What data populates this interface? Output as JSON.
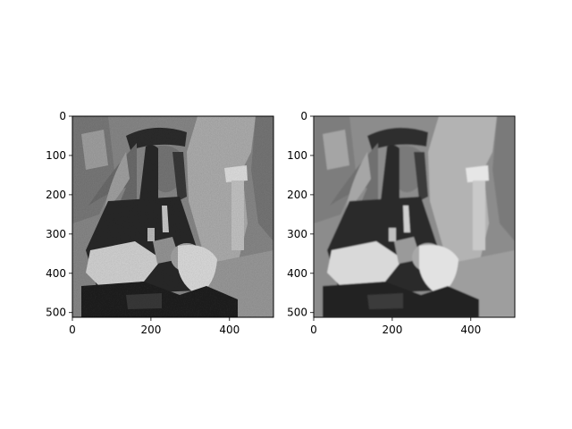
{
  "figure": {
    "background": "#ffffff",
    "axis_color": "#000000"
  },
  "chart_data": [
    {
      "type": "heatmap",
      "title": "",
      "xlabel": "",
      "ylabel": "",
      "colormap": "gray",
      "image_size": [
        512,
        512
      ],
      "xlim": [
        0,
        512
      ],
      "ylim": [
        512,
        0
      ],
      "x_ticks": [
        0,
        200,
        400
      ],
      "y_ticks": [
        0,
        100,
        200,
        300,
        400,
        500
      ],
      "grid": false,
      "content": "grayscale photo: seated person with feather-plumed hat holding a large shell, original"
    },
    {
      "type": "heatmap",
      "title": "",
      "xlabel": "",
      "ylabel": "",
      "colormap": "gray",
      "image_size": [
        512,
        512
      ],
      "xlim": [
        0,
        512
      ],
      "ylim": [
        512,
        0
      ],
      "x_ticks": [
        0,
        200,
        400
      ],
      "y_ticks": [
        0,
        100,
        200,
        300,
        400,
        500
      ],
      "grid": false,
      "content": "grayscale photo: same scene, smoothed/denoised version"
    }
  ]
}
